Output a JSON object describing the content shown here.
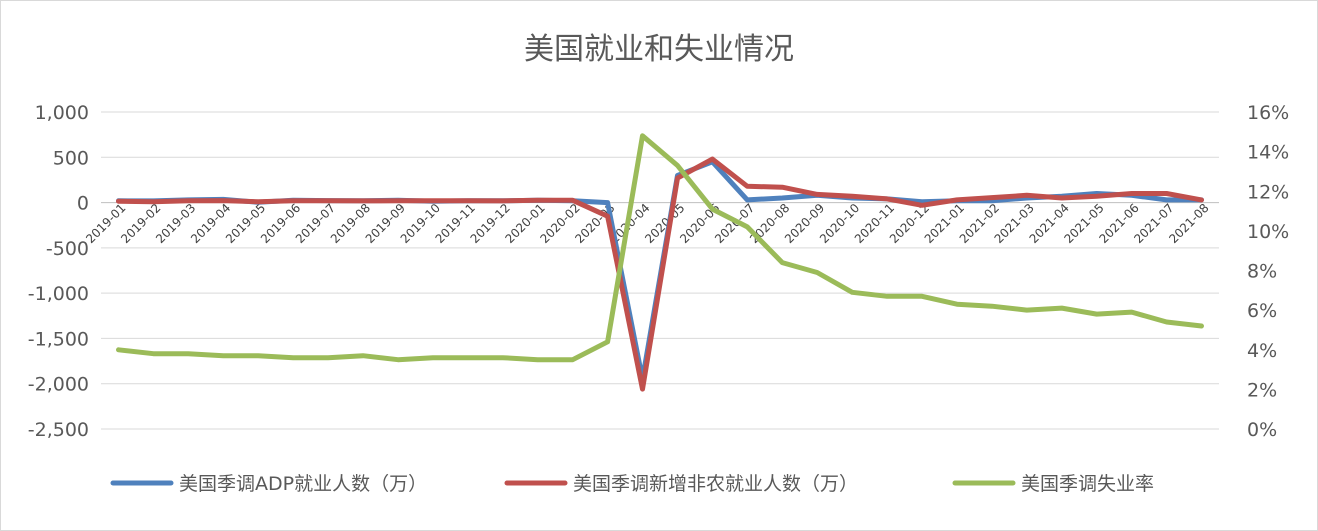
{
  "chart_data": {
    "type": "line",
    "title": "美国就业和失业情况",
    "categories": [
      "2019-01",
      "2019-02",
      "2019-03",
      "2019-04",
      "2019-05",
      "2019-06",
      "2019-07",
      "2019-08",
      "2019-09",
      "2019-10",
      "2019-11",
      "2019-12",
      "2020-01",
      "2020-02",
      "2020-03",
      "2020-04",
      "2020-05",
      "2020-06",
      "2020-07",
      "2020-08",
      "2020-09",
      "2020-10",
      "2020-11",
      "2020-12",
      "2021-01",
      "2021-02",
      "2021-03",
      "2021-04",
      "2021-05",
      "2021-06",
      "2021-07",
      "2021-08"
    ],
    "y_left": {
      "ticks": [
        "1,000",
        "500",
        "0",
        "-500",
        "-1,000",
        "-1,500",
        "-2,000",
        "-2,500"
      ],
      "min": -2500,
      "max": 1000,
      "step": 500
    },
    "y_right": {
      "ticks": [
        "16%",
        "14%",
        "12%",
        "10%",
        "8%",
        "6%",
        "4%",
        "2%",
        "0%"
      ],
      "min": 0,
      "max": 16,
      "step": 2
    },
    "series": [
      {
        "name": "美国季调ADP就业人数（万）",
        "axis": "left",
        "color": "#4f81bd",
        "values": [
          20,
          18,
          30,
          35,
          3,
          25,
          22,
          20,
          25,
          15,
          20,
          20,
          25,
          20,
          0,
          -1950,
          300,
          450,
          30,
          50,
          80,
          50,
          40,
          10,
          20,
          20,
          50,
          70,
          100,
          80,
          30,
          30
        ]
      },
      {
        "name": "美国季调新增非农就业人数（万）",
        "axis": "left",
        "color": "#c0504d",
        "values": [
          15,
          10,
          20,
          22,
          10,
          20,
          20,
          18,
          20,
          20,
          20,
          18,
          25,
          25,
          -150,
          -2060,
          270,
          480,
          180,
          170,
          90,
          70,
          40,
          -30,
          30,
          55,
          80,
          50,
          70,
          100,
          100,
          30
        ]
      },
      {
        "name": "美国季调失业率",
        "axis": "right",
        "color": "#9bbb59",
        "values": [
          4.0,
          3.8,
          3.8,
          3.7,
          3.7,
          3.6,
          3.6,
          3.7,
          3.5,
          3.6,
          3.6,
          3.6,
          3.5,
          3.5,
          4.4,
          14.8,
          13.3,
          11.1,
          10.2,
          8.4,
          7.9,
          6.9,
          6.7,
          6.7,
          6.3,
          6.2,
          6.0,
          6.1,
          5.8,
          5.9,
          5.4,
          5.2
        ]
      }
    ],
    "legend_position": "bottom",
    "grid": true
  }
}
